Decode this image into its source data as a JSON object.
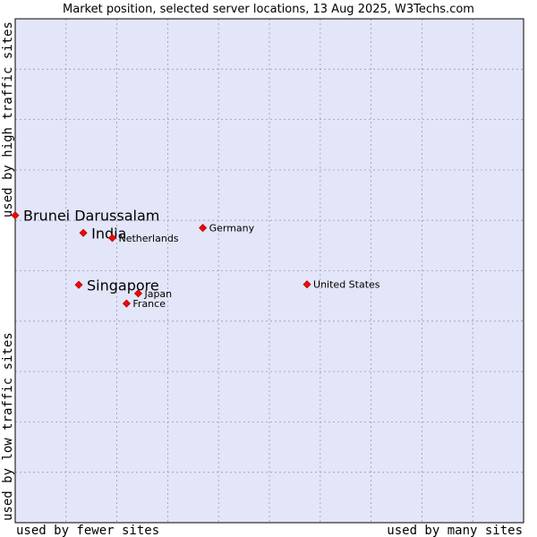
{
  "chart_data": {
    "type": "scatter",
    "title": "Market position, selected server locations, 13 Aug 2025, W3Techs.com",
    "xlabel_left": "used by fewer sites",
    "xlabel_right": "used by many sites",
    "ylabel_bottom": "used by low traffic sites",
    "ylabel_top": "used by high traffic sites",
    "xlim": [
      0,
      100
    ],
    "ylim": [
      0,
      100
    ],
    "grid": true,
    "colors": {
      "plot_bg": "#e3e5f8",
      "grid": "#9a9ab8",
      "point": "#ff0000",
      "point_edge": "#990000"
    },
    "points": [
      {
        "name": "Brunei Darussalam",
        "x": 0.0,
        "y": 61.0,
        "emphasis": true
      },
      {
        "name": "India",
        "x": 13.4,
        "y": 57.5,
        "emphasis": true
      },
      {
        "name": "Netherlands",
        "x": 19.1,
        "y": 56.5,
        "emphasis": false
      },
      {
        "name": "Germany",
        "x": 36.9,
        "y": 58.5,
        "emphasis": false
      },
      {
        "name": "Singapore",
        "x": 12.5,
        "y": 47.2,
        "emphasis": true
      },
      {
        "name": "Japan",
        "x": 24.2,
        "y": 45.5,
        "emphasis": false
      },
      {
        "name": "France",
        "x": 21.9,
        "y": 43.5,
        "emphasis": false
      },
      {
        "name": "United States",
        "x": 57.4,
        "y": 47.3,
        "emphasis": false
      }
    ]
  }
}
